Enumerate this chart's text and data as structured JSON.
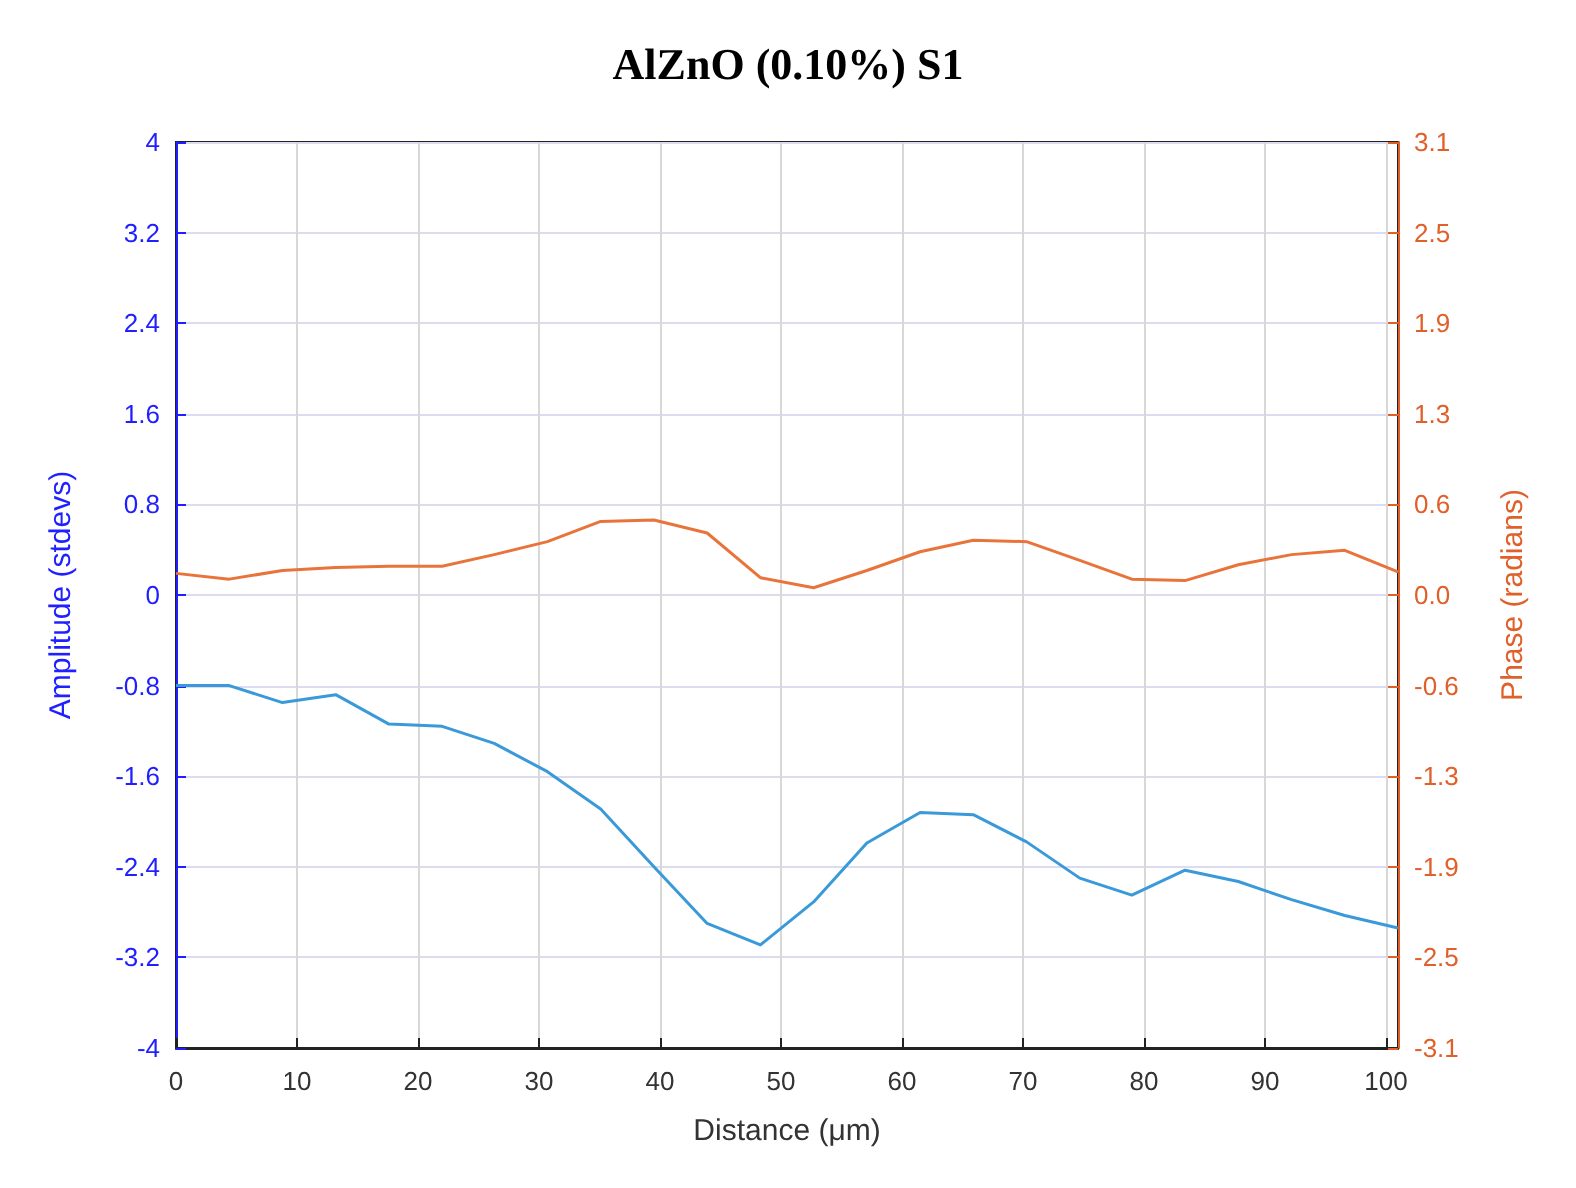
{
  "chart_data": {
    "type": "line",
    "title": "AlZnO (0.10%) S1",
    "xlabel": "Distance (μm)",
    "ylabel": "Amplitude (stdevs)",
    "y2label": "Phase (radians)",
    "x": [
      0,
      4.4,
      8.8,
      13.2,
      17.6,
      22,
      26.3,
      30.7,
      35.1,
      39.5,
      43.9,
      48.3,
      52.7,
      57.1,
      61.5,
      65.9,
      70.3,
      74.7,
      79,
      83.4,
      87.8,
      92.2,
      96.6,
      101
    ],
    "series": [
      {
        "color": "#3a9ad9",
        "values": [
          -0.8,
          -0.8,
          -0.95,
          -0.88,
          -1.14,
          -1.16,
          -1.31,
          -1.56,
          -1.89,
          -2.4,
          -2.9,
          -3.09,
          -2.71,
          -2.19,
          -1.92,
          -1.94,
          -2.18,
          -2.5,
          -2.65,
          -2.43,
          -2.53,
          -2.69,
          -2.83,
          -2.94
        ]
      },
      {
        "color": "#e8743b",
        "axis": "y2",
        "values": [
          0.15,
          0.11,
          0.17,
          0.19,
          0.2,
          0.2,
          0.28,
          0.37,
          0.51,
          0.52,
          0.43,
          0.12,
          0.05,
          0.17,
          0.3,
          0.38,
          0.37,
          0.24,
          0.11,
          0.1,
          0.21,
          0.28,
          0.31,
          0.16
        ]
      }
    ],
    "xlim": [
      0,
      101
    ],
    "xticks": [
      0,
      10,
      20,
      30,
      40,
      50,
      60,
      70,
      80,
      90,
      100
    ],
    "ylim": [
      -4,
      4
    ],
    "yticks": [
      -4,
      -3.2,
      -2.4,
      -1.6,
      -0.8,
      0,
      0.8,
      1.6,
      2.4,
      3.2,
      4
    ],
    "y2lim": [
      -3.1416,
      3.1416
    ],
    "y2ticks": [
      {
        "value": -3.1416,
        "label": "-3.1"
      },
      {
        "value": -2.5133,
        "label": "-2.5"
      },
      {
        "value": -1.885,
        "label": "-1.9"
      },
      {
        "value": -1.2566,
        "label": "-1.3"
      },
      {
        "value": -0.6283,
        "label": "-0.6"
      },
      {
        "value": 0,
        "label": "0.0"
      },
      {
        "value": 0.6283,
        "label": "0.6"
      },
      {
        "value": 1.2566,
        "label": "1.3"
      },
      {
        "value": 1.885,
        "label": "1.9"
      },
      {
        "value": 2.5133,
        "label": "2.5"
      },
      {
        "value": 3.1416,
        "label": "3.1"
      }
    ],
    "grid": true,
    "marker": "none",
    "line_style": "solid"
  }
}
